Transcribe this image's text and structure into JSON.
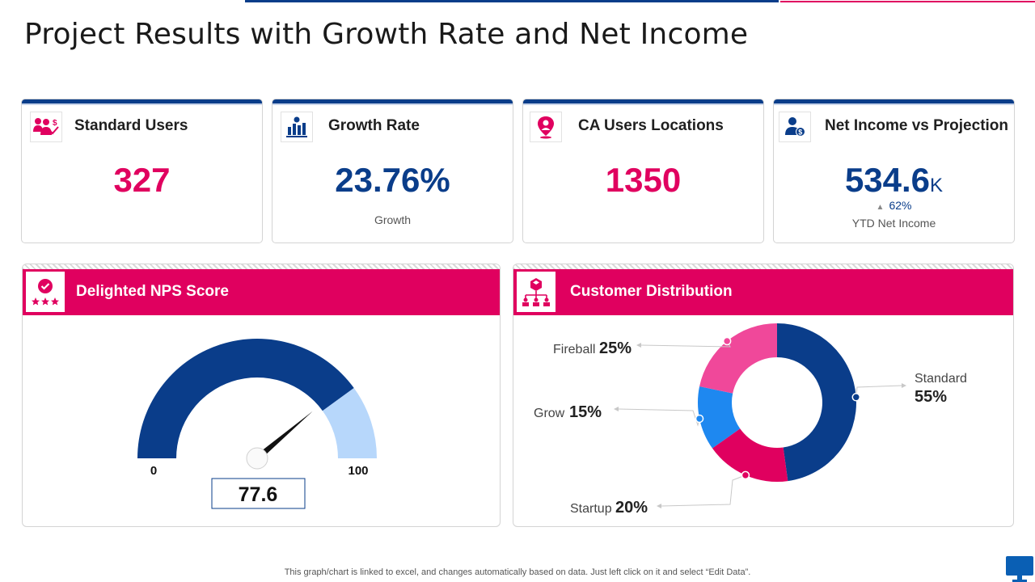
{
  "page": {
    "title": "Project Results with Growth Rate and Net Income",
    "footer_note": "This graph/chart is linked to excel, and changes automatically based on data. Just left click on it and select “Edit Data”."
  },
  "colors": {
    "pink": "#e0005f",
    "navy": "#0a3d8a",
    "light_blue": "#b7d7fb",
    "mid_blue": "#1e88f0",
    "rose": "#f0489a"
  },
  "kpis": [
    {
      "title": "Standard Users",
      "value": "327",
      "icon": "users-dollar-icon"
    },
    {
      "title": "Growth Rate",
      "value": "23.76%",
      "subtitle": "Growth",
      "icon": "growth-chart-icon"
    },
    {
      "title": "CA Users Locations",
      "value": "1350",
      "icon": "location-pin-icon"
    },
    {
      "title": "Net Income vs Projection",
      "value": "534.6",
      "unit": "K",
      "change_arrow": "▲",
      "change": "62%",
      "subtitle": "YTD Net Income",
      "icon": "user-dollar-icon"
    }
  ],
  "nps_panel": {
    "title": "Delighted NPS Score",
    "icon": "star-rating-check-icon",
    "gauge": {
      "min": 0,
      "max": 100,
      "min_label": "0",
      "max_label": "100",
      "value": 77.6,
      "value_label": "77.6",
      "threshold": 80
    }
  },
  "distribution_panel": {
    "title": "Customer Distribution",
    "icon": "hierarchy-icon"
  },
  "chart_data": [
    {
      "type": "gauge",
      "min": 0,
      "max": 100,
      "value": 77.6,
      "bands": [
        {
          "from": 0,
          "to": 80,
          "color": "#0a3d8a"
        },
        {
          "from": 80,
          "to": 100,
          "color": "#b7d7fb"
        }
      ]
    },
    {
      "type": "pie",
      "donut": true,
      "slices": [
        {
          "label": "Standard",
          "value": 55,
          "display": "55%",
          "color": "#0a3d8a"
        },
        {
          "label": "Startup",
          "value": 20,
          "display": "20%",
          "color": "#e0005f"
        },
        {
          "label": "Grow",
          "value": 15,
          "display": "15%",
          "color": "#1e88f0"
        },
        {
          "label": "Fireball",
          "value": 25,
          "display": "25%",
          "color": "#f0489a"
        }
      ]
    }
  ]
}
